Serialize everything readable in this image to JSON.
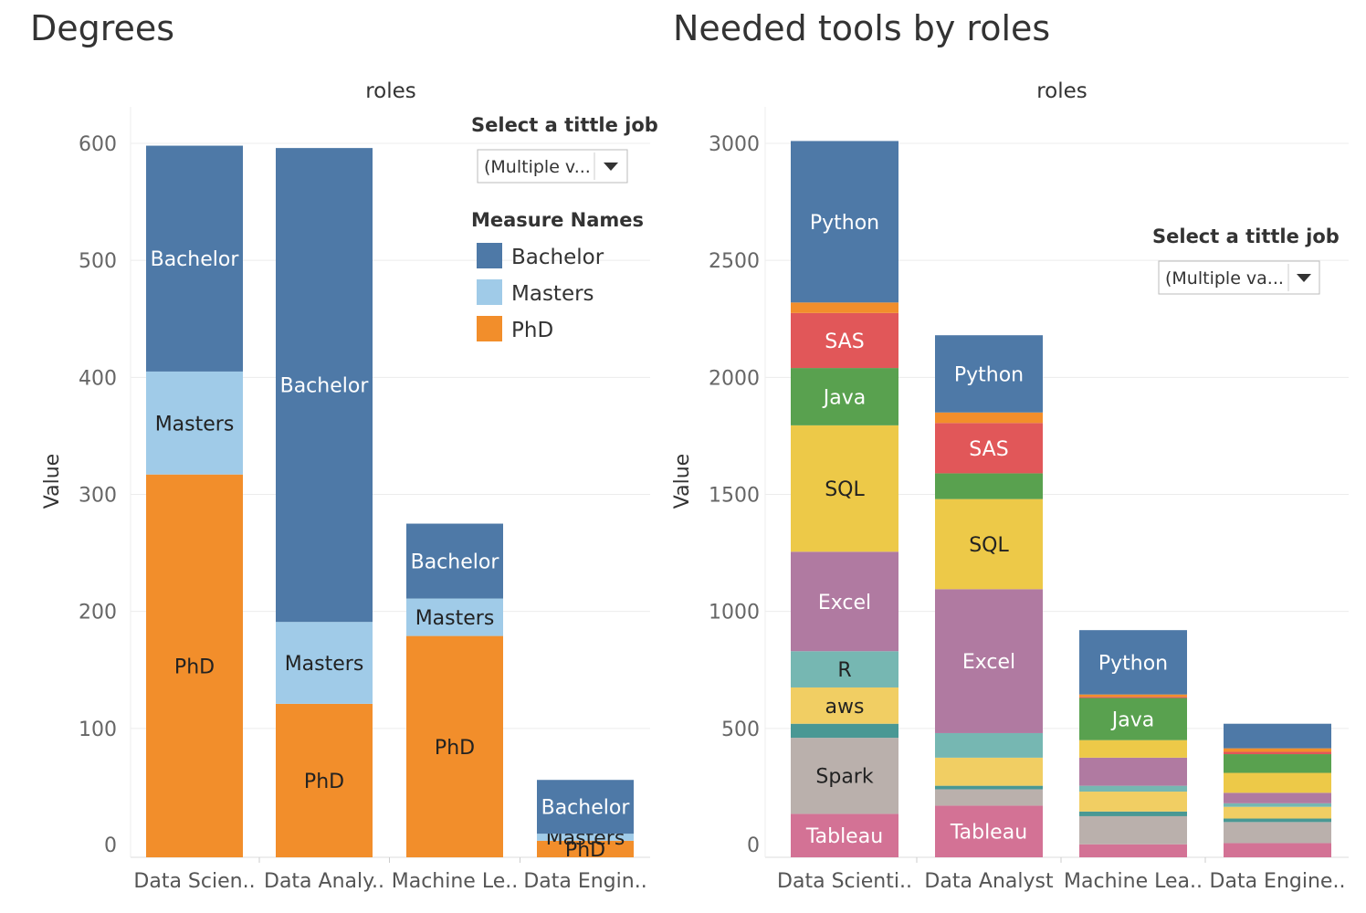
{
  "colors": {
    "Bachelor": "#4e79a7",
    "Masters": "#a0cbe8",
    "PhD": "#f28e2b",
    "Python": "#4e79a7",
    "Other-orange": "#f28e2b",
    "SAS": "#e15759",
    "Java": "#59a14f",
    "SQL": "#edc948",
    "Excel": "#b07aa1",
    "R": "#76b7b2",
    "aws": "#f1ce63",
    "Other-teal": "#499894",
    "Spark": "#bab0ac",
    "Tableau": "#d37295"
  },
  "left_panel": {
    "title": "Degrees",
    "control": {
      "title": "Select a tittle job",
      "value": "(Multiple v..."
    },
    "legend_title": "Measure Names",
    "legend": [
      "Bachelor",
      "Masters",
      "PhD"
    ]
  },
  "right_panel": {
    "title": "Needed tools by roles",
    "control": {
      "title": "Select a tittle job",
      "value": "(Multiple va..."
    }
  },
  "chart_data": [
    {
      "type": "bar",
      "stacked": true,
      "header": "roles",
      "ylabel": "Value",
      "ylim": [
        0,
        600
      ],
      "yticks": [
        0,
        100,
        200,
        300,
        400,
        500,
        600
      ],
      "categories": [
        "Data Scien..",
        "Data Analy..",
        "Machine Le..",
        "Data Engin.."
      ],
      "series": [
        {
          "name": "PhD",
          "values": [
            317,
            121,
            179,
            4
          ]
        },
        {
          "name": "Masters",
          "values": [
            88,
            70,
            32,
            6
          ]
        },
        {
          "name": "Bachelor",
          "values": [
            193,
            405,
            64,
            46
          ]
        }
      ],
      "grid": true,
      "legend": "right"
    },
    {
      "type": "bar",
      "stacked": true,
      "header": "roles",
      "ylabel": "Value",
      "ylim": [
        0,
        3000
      ],
      "yticks": [
        0,
        500,
        1000,
        1500,
        2000,
        2500,
        3000
      ],
      "categories": [
        "Data Scienti..",
        "Data Analyst",
        "Machine Lea..",
        "Data Engine.."
      ],
      "series": [
        {
          "name": "Tableau",
          "values": [
            135,
            170,
            5,
            10
          ]
        },
        {
          "name": "Spark",
          "values": [
            325,
            70,
            120,
            90
          ]
        },
        {
          "name": "Other-teal",
          "values": [
            60,
            15,
            20,
            15
          ]
        },
        {
          "name": "aws",
          "values": [
            155,
            120,
            85,
            50
          ]
        },
        {
          "name": "R",
          "values": [
            155,
            105,
            25,
            15
          ]
        },
        {
          "name": "Excel",
          "values": [
            425,
            615,
            120,
            45
          ]
        },
        {
          "name": "SQL",
          "values": [
            540,
            385,
            75,
            85
          ]
        },
        {
          "name": "Java",
          "values": [
            245,
            110,
            180,
            80
          ]
        },
        {
          "name": "SAS",
          "values": [
            235,
            215,
            5,
            10
          ]
        },
        {
          "name": "Other-orange",
          "values": [
            45,
            45,
            10,
            15
          ]
        },
        {
          "name": "Python",
          "values": [
            690,
            330,
            275,
            105
          ]
        }
      ],
      "segment_labels": {
        "Tableau": [
          "Tableau",
          "Tableau",
          "",
          ""
        ],
        "Spark": [
          "Spark",
          "",
          "",
          ""
        ],
        "aws": [
          "aws",
          "",
          "",
          ""
        ],
        "R": [
          "R",
          "",
          "",
          ""
        ],
        "Excel": [
          "Excel",
          "Excel",
          "",
          ""
        ],
        "SQL": [
          "SQL",
          "SQL",
          "",
          ""
        ],
        "Java": [
          "Java",
          "",
          "Java",
          ""
        ],
        "SAS": [
          "SAS",
          "SAS",
          "",
          ""
        ],
        "Python": [
          "Python",
          "Python",
          "Python",
          ""
        ]
      },
      "grid": true
    }
  ]
}
